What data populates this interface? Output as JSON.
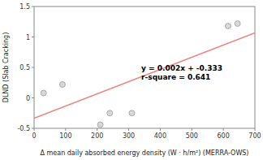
{
  "chart_data": {
    "type": "scatter",
    "xlabel": "Δ mean daily absorbed energy density (W · h/m²) (MERRA-OWS)",
    "ylabel": "DLND (Slab Cracking)",
    "series": [
      {
        "type": "scatter",
        "color": "#d8d8d8",
        "x": [
          30,
          90,
          210,
          240,
          310,
          615,
          645
        ],
        "values": [
          0.08,
          0.22,
          -0.44,
          -0.25,
          -0.25,
          1.18,
          1.22
        ]
      },
      {
        "type": "line",
        "color": "#f08080",
        "x": [
          0,
          700
        ],
        "values": [
          -0.333,
          1.067
        ]
      }
    ],
    "annotations": [
      {
        "lines": [
          "y = 0.002x + -0.333",
          "r-square = 0.641"
        ],
        "x": 340,
        "y": 0.42
      }
    ],
    "xlim": [
      0,
      700
    ],
    "ylim": [
      -0.5,
      1.5
    ],
    "xticks": [
      0,
      100,
      200,
      300,
      400,
      500,
      600,
      700
    ],
    "yticks": [
      -0.5,
      0,
      0.5,
      1,
      1.5
    ],
    "grid": false
  }
}
